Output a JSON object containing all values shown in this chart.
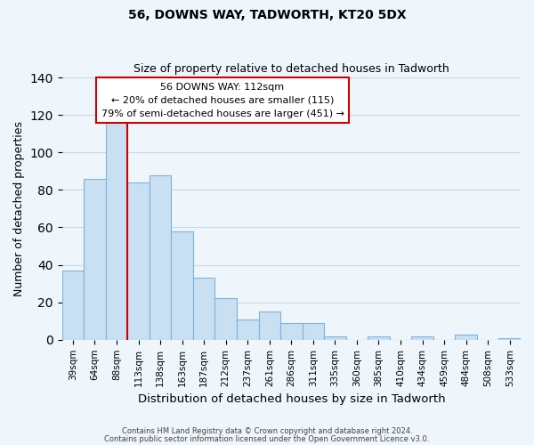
{
  "title": "56, DOWNS WAY, TADWORTH, KT20 5DX",
  "subtitle": "Size of property relative to detached houses in Tadworth",
  "xlabel": "Distribution of detached houses by size in Tadworth",
  "ylabel": "Number of detached properties",
  "bar_labels": [
    "39sqm",
    "64sqm",
    "88sqm",
    "113sqm",
    "138sqm",
    "163sqm",
    "187sqm",
    "212sqm",
    "237sqm",
    "261sqm",
    "286sqm",
    "311sqm",
    "335sqm",
    "360sqm",
    "385sqm",
    "410sqm",
    "434sqm",
    "459sqm",
    "484sqm",
    "508sqm",
    "533sqm"
  ],
  "bar_heights": [
    37,
    86,
    118,
    84,
    88,
    58,
    33,
    22,
    11,
    15,
    9,
    9,
    2,
    0,
    2,
    0,
    2,
    0,
    3,
    0,
    1
  ],
  "bar_color": "#c9dff2",
  "bar_edge_color": "#7fb3d9",
  "grid_color": "#c8d8e8",
  "background_color": "#eef5fb",
  "vline_x_index": 3,
  "vline_color": "#cc0000",
  "annotation_lines": [
    "56 DOWNS WAY: 112sqm",
    "← 20% of detached houses are smaller (115)",
    "79% of semi-detached houses are larger (451) →"
  ],
  "annotation_box_color": "#ffffff",
  "annotation_box_edge_color": "#cc0000",
  "ylim": [
    0,
    140
  ],
  "yticks": [
    0,
    20,
    40,
    60,
    80,
    100,
    120,
    140
  ],
  "footnote1": "Contains HM Land Registry data © Crown copyright and database right 2024.",
  "footnote2": "Contains public sector information licensed under the Open Government Licence v3.0."
}
